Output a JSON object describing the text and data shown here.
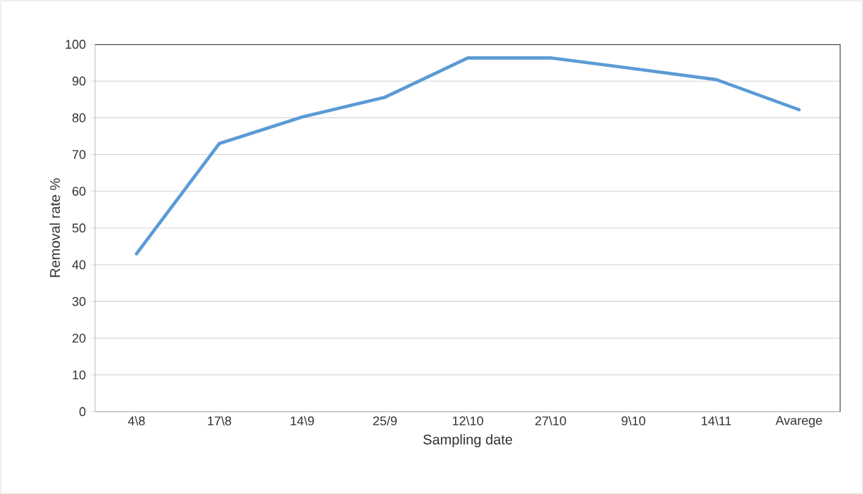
{
  "chart_data": {
    "type": "line",
    "xlabel": "Sampling date",
    "ylabel": "Removal rate %",
    "categories": [
      "4\\8",
      "17\\8",
      "14\\9",
      "25/9",
      "12\\10",
      "27\\10",
      "9\\10",
      "14\\11",
      "Avarege"
    ],
    "values": [
      43,
      73,
      80.2,
      85.6,
      96.3,
      96.3,
      93.4,
      90.4,
      82.2
    ],
    "color": "#5b9bd5",
    "ylim": [
      0,
      100
    ],
    "yticks": [
      0,
      10,
      20,
      30,
      40,
      50,
      60,
      70,
      80,
      90,
      100
    ],
    "grid": "y",
    "marker": "none",
    "line_style": "solid"
  }
}
